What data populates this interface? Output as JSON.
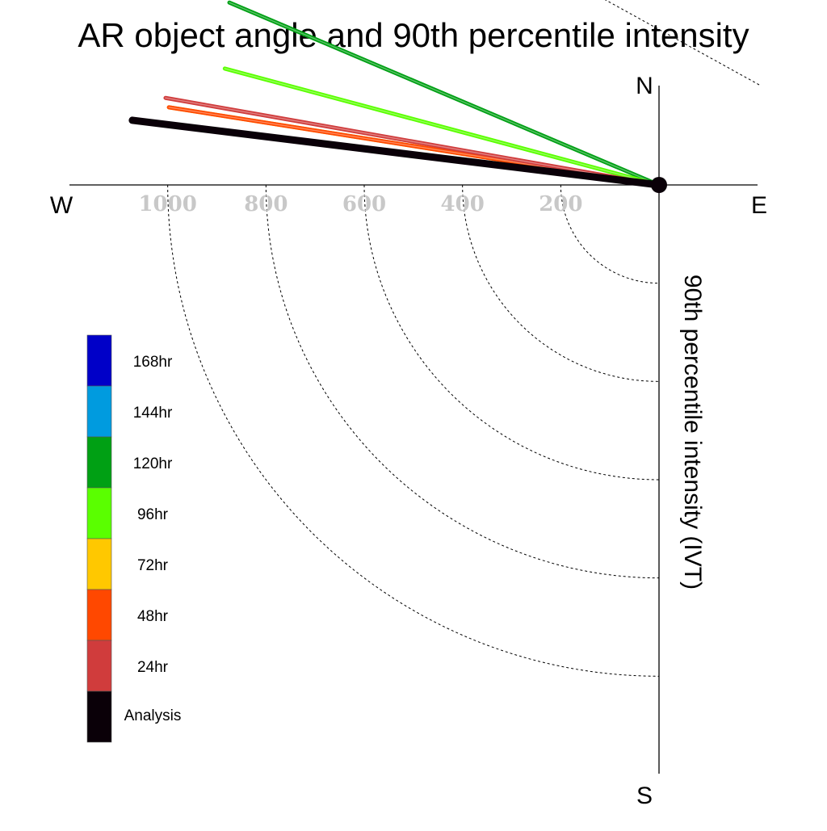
{
  "chart_data": {
    "type": "polar-vector",
    "title": "AR object angle and 90th percentile intensity",
    "ylabel": "90th percentile intensity (IVT)",
    "compass": {
      "north": "N",
      "south": "S",
      "east": "E",
      "west": "W"
    },
    "radial_ticks": [
      "1000",
      "800",
      "600",
      "400",
      "200"
    ],
    "radial_tick_values": [
      1000,
      800,
      600,
      400,
      200
    ],
    "rmax": 1200,
    "series": [
      {
        "name": "168hr",
        "color": "#0000c8",
        "angle_deg": null,
        "intensity": null
      },
      {
        "name": "144hr",
        "color": "#009bdf",
        "angle_deg": null,
        "intensity": null
      },
      {
        "name": "120hr",
        "color": "#00a014",
        "angle_deg": 203,
        "intensity": 950
      },
      {
        "name": "96hr",
        "color": "#5aff00",
        "angle_deg": 195,
        "intensity": 915
      },
      {
        "name": "72hr",
        "color": "#ffc800",
        "angle_deg": 189,
        "intensity": 1010
      },
      {
        "name": "48hr",
        "color": "#ff4800",
        "angle_deg": 189,
        "intensity": 1010
      },
      {
        "name": "24hr",
        "color": "#d03c3c",
        "angle_deg": 190,
        "intensity": 1020
      },
      {
        "name": "Analysis",
        "color": "#0a0008",
        "angle_deg": 187,
        "intensity": 1080
      }
    ],
    "legend": {
      "placement": "lower-left",
      "entries": [
        "168hr",
        "144hr",
        "120hr",
        "96hr",
        "72hr",
        "48hr",
        "24hr",
        "Analysis"
      ]
    },
    "grid": true
  }
}
